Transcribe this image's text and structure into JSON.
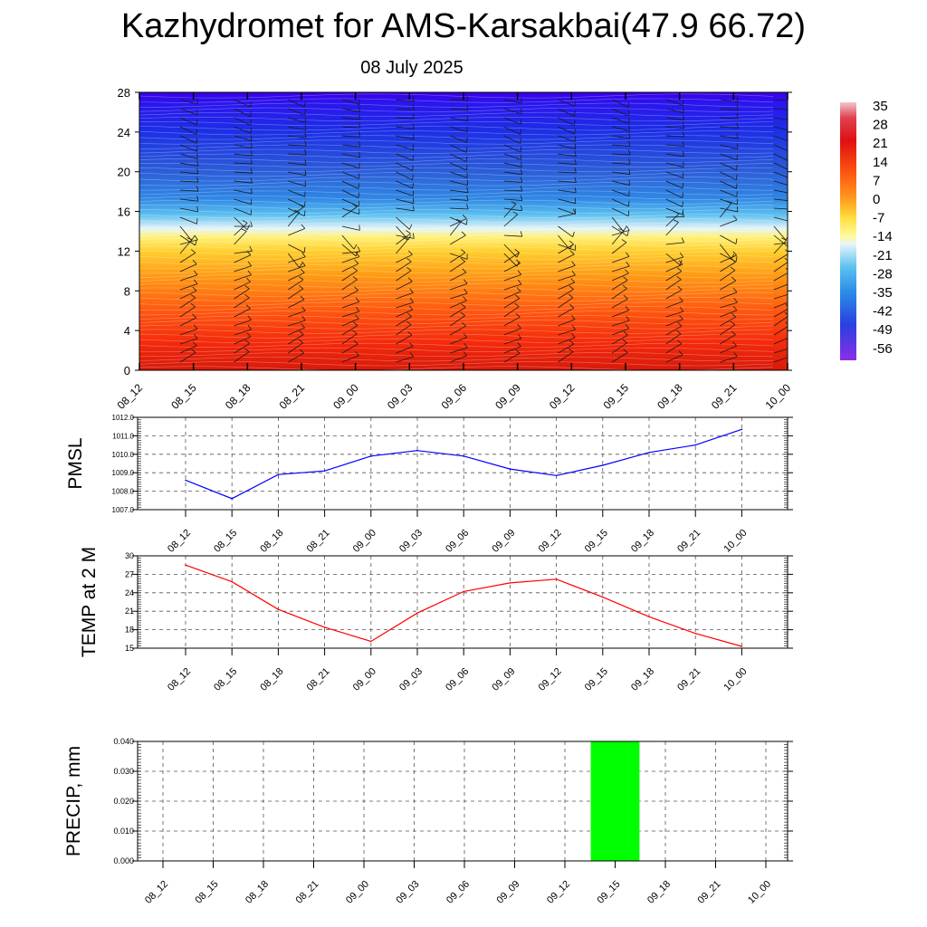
{
  "page": {
    "title": "Kazhydromet for AMS-Karsakbai(47.9 66.72)",
    "subtitle": "08 July 2025"
  },
  "colors": {
    "pmsl_line": "#0000ff",
    "temp_line": "#ff0000",
    "precip_bar": "#00ff00",
    "grid": "#000000"
  },
  "chart_data": [
    {
      "type": "heatmap",
      "title": "",
      "xlabel": "",
      "ylabel": "",
      "x_tick_labels": [
        "08_12",
        "08_15",
        "08_18",
        "08_21",
        "09_00",
        "09_03",
        "09_06",
        "09_09",
        "09_12",
        "09_15",
        "09_18",
        "09_21",
        "10_00"
      ],
      "y_tick_labels": [
        "0",
        "4",
        "8",
        "12",
        "16",
        "20",
        "24",
        "28"
      ],
      "ylim": [
        0,
        28
      ],
      "colorbar_labels": [
        "35",
        "28",
        "21",
        "14",
        "7",
        "0",
        "-7",
        "-14",
        "-21",
        "-28",
        "-35",
        "-42",
        "-49",
        "-56"
      ],
      "colorbar_range": [
        -56,
        35
      ],
      "overlay": "wind barbs"
    },
    {
      "type": "line",
      "ylabel": "PMSL",
      "x": [
        "08_12",
        "08_15",
        "08_18",
        "08_21",
        "09_00",
        "09_03",
        "09_06",
        "09_09",
        "09_12",
        "09_15",
        "09_18",
        "09_21",
        "10_00"
      ],
      "y_tick_labels": [
        "1007.0",
        "1008.0",
        "1009.0",
        "1010.0",
        "1011.0",
        "1012.0"
      ],
      "ylim": [
        1007.0,
        1012.0
      ],
      "grid": true,
      "series": [
        {
          "values": [
            1008.6,
            1007.6,
            1008.9,
            1009.1,
            1009.9,
            1010.2,
            1009.9,
            1009.2,
            1008.85,
            1009.4,
            1010.1,
            1010.5,
            1011.35
          ]
        }
      ]
    },
    {
      "type": "line",
      "ylabel": "TEMP at 2 M",
      "x": [
        "08_12",
        "08_15",
        "08_18",
        "08_21",
        "09_00",
        "09_03",
        "09_06",
        "09_09",
        "09_12",
        "09_15",
        "09_18",
        "09_21",
        "10_00"
      ],
      "y_tick_labels": [
        "15",
        "18",
        "21",
        "24",
        "27",
        "30"
      ],
      "ylim": [
        15,
        30
      ],
      "grid": true,
      "series": [
        {
          "values": [
            28.5,
            25.8,
            21.3,
            18.4,
            16.1,
            20.7,
            24.2,
            25.6,
            26.2,
            23.3,
            20.1,
            17.4,
            15.3
          ]
        }
      ]
    },
    {
      "type": "bar",
      "ylabel": "PRECIP, mm",
      "categories": [
        "08_12",
        "08_15",
        "08_18",
        "08_21",
        "09_00",
        "09_03",
        "09_06",
        "09_09",
        "09_12",
        "09_15",
        "09_18",
        "09_21",
        "10_00"
      ],
      "values": [
        0,
        0,
        0,
        0,
        0,
        0,
        0,
        0,
        0,
        0.04,
        0,
        0,
        0
      ],
      "y_tick_labels": [
        "0.000",
        "0.010",
        "0.020",
        "0.030",
        "0.040"
      ],
      "ylim": [
        0,
        0.04
      ],
      "grid": true
    }
  ]
}
